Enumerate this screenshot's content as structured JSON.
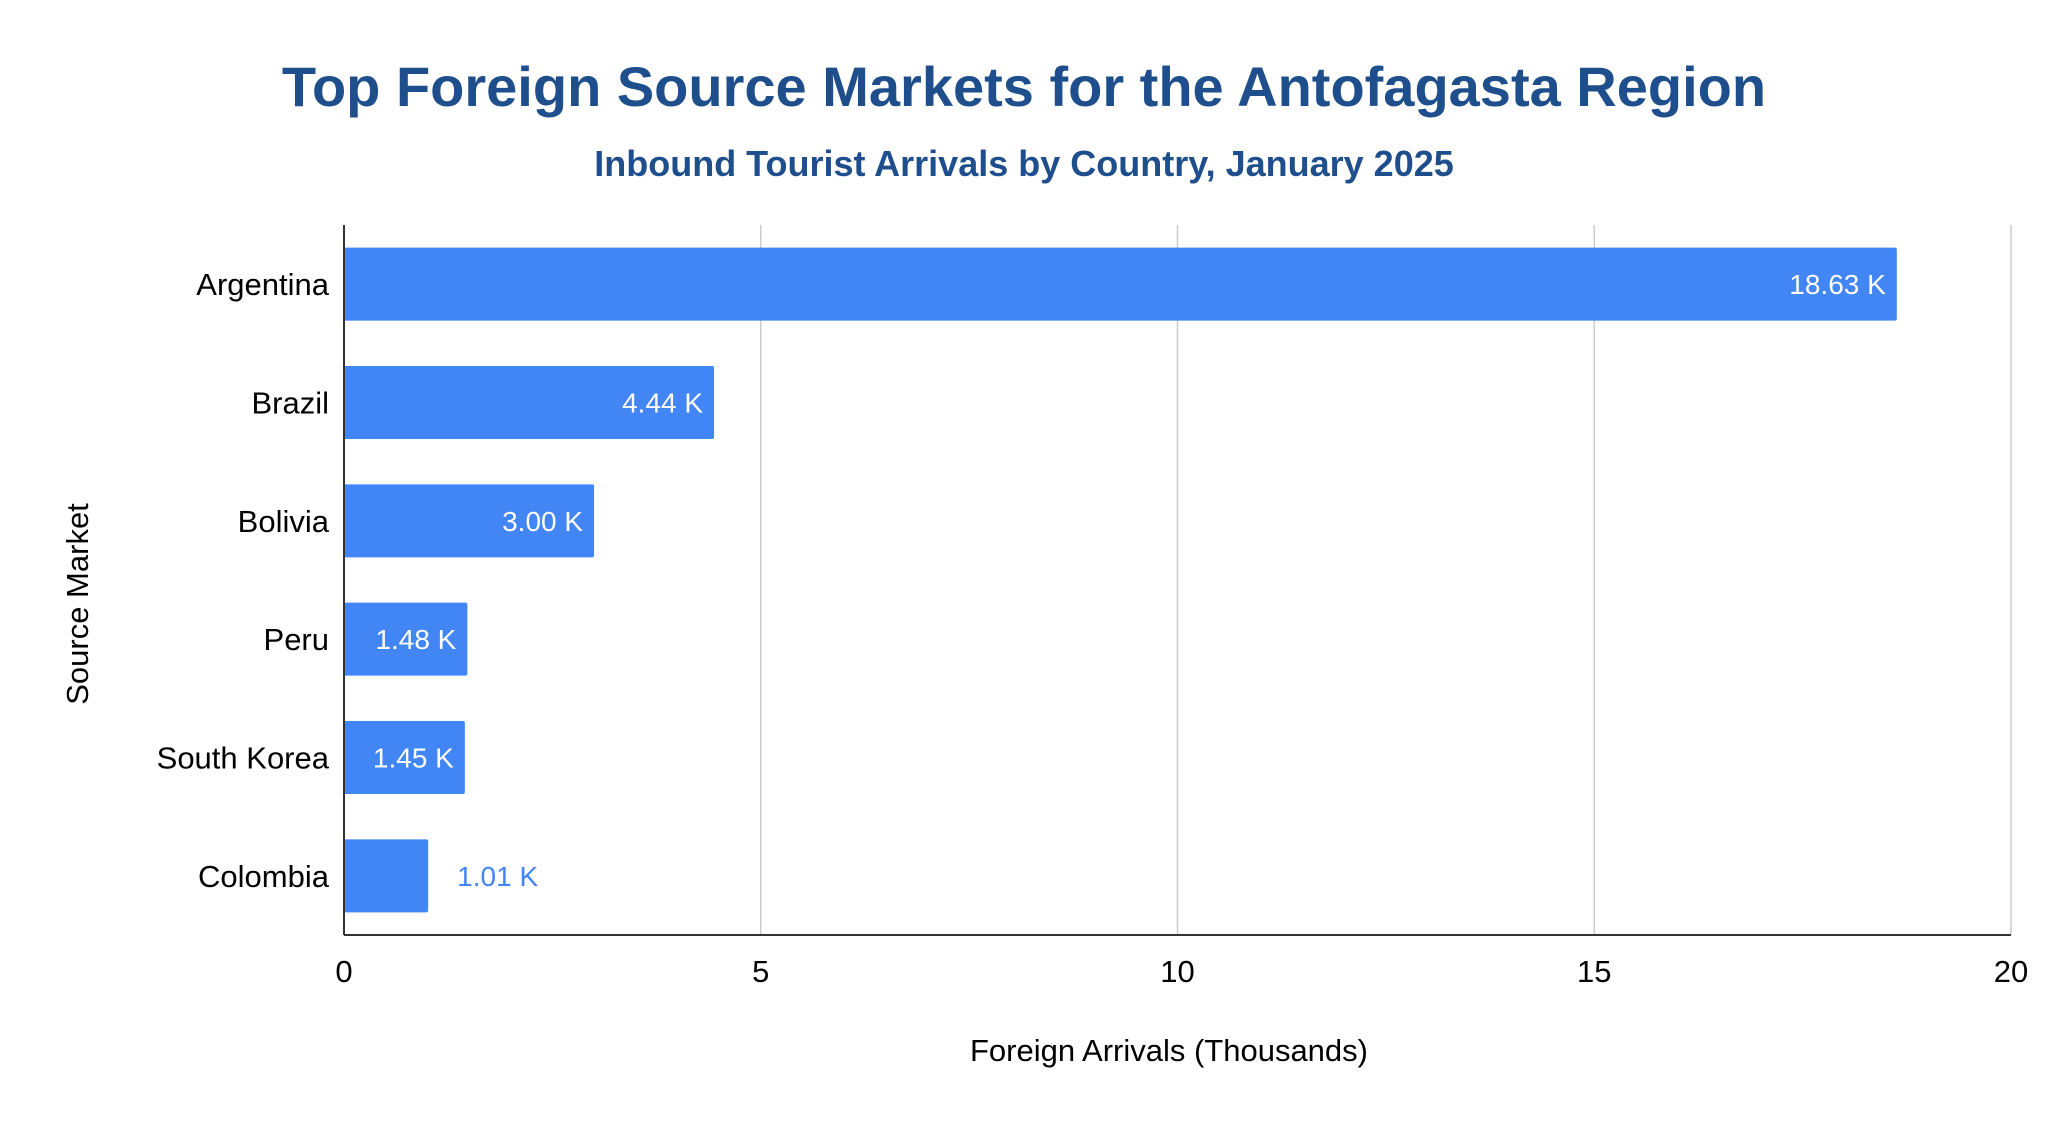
{
  "chart_data": {
    "type": "bar",
    "orientation": "horizontal",
    "title": "Top Foreign Source Markets for the Antofagasta Region",
    "subtitle": "Inbound Tourist Arrivals by Country, January 2025",
    "xlabel": "Foreign Arrivals (Thousands)",
    "ylabel": "Source Market",
    "categories": [
      "Argentina",
      "Brazil",
      "Bolivia",
      "Peru",
      "South Korea",
      "Colombia"
    ],
    "values": [
      18.63,
      4.44,
      3.0,
      1.48,
      1.45,
      1.01
    ],
    "data_labels": [
      "18.63 K",
      "4.44 K",
      "3.00 K",
      "1.48 K",
      "1.45 K",
      "1.01 K"
    ],
    "xlim": [
      0,
      20
    ],
    "xticks": [
      "0",
      "5",
      "10",
      "15",
      "20"
    ],
    "grid": "vertical",
    "legend": "none"
  },
  "colors": {
    "bar": "#4285F4",
    "title": "#1F4E8C",
    "label_inside": "#FFFFFF",
    "label_outside": "#4285F4",
    "grid": "#CCCCCC",
    "axis": "#333333",
    "text": "#000000"
  }
}
